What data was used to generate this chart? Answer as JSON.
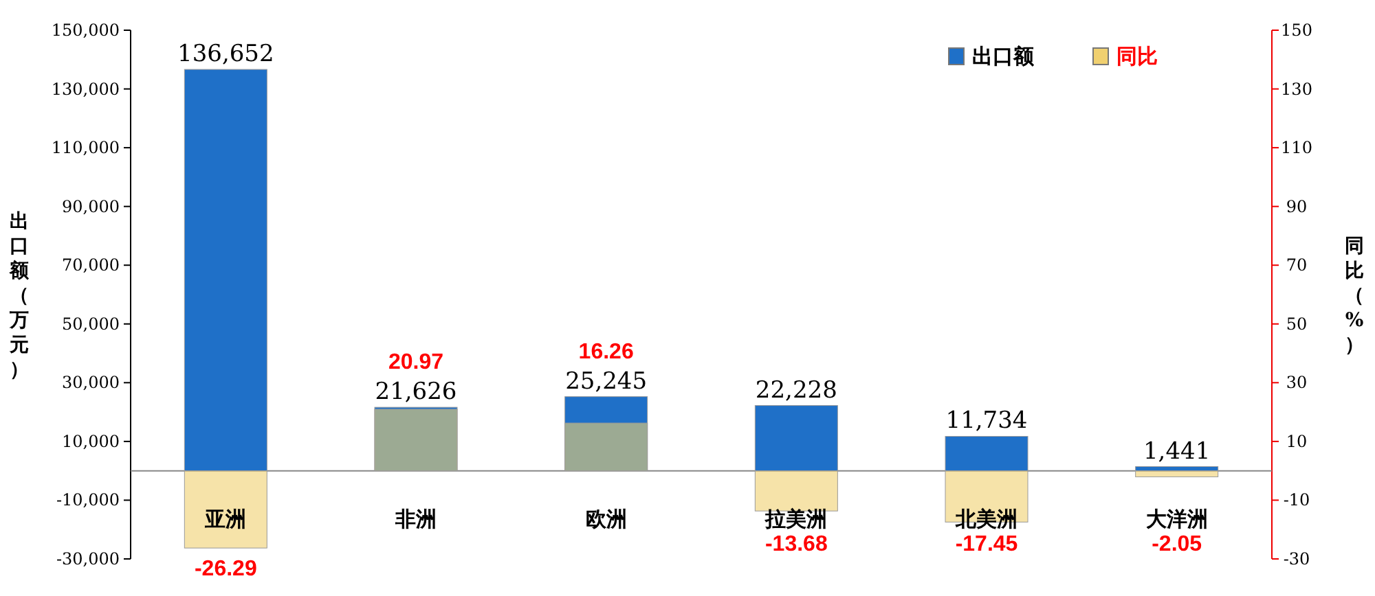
{
  "chart_data": {
    "type": "bar",
    "categories": [
      "亚洲",
      "非洲",
      "欧洲",
      "拉美洲",
      "北美洲",
      "大洋洲"
    ],
    "ylabel": "出口额（万元）",
    "y2label": "同比（%）",
    "series": [
      {
        "name": "出口额",
        "color": "#1f70c8",
        "values": [
          136652,
          21626,
          25245,
          22228,
          11734,
          1441
        ],
        "value_labels": [
          "136,652",
          "21,626",
          "25,245",
          "22,228",
          "11,734",
          "1,441"
        ]
      },
      {
        "name": "同比",
        "color": "#f0d070",
        "axis": "y2",
        "values": [
          -26.29,
          20.97,
          16.26,
          -13.68,
          -17.45,
          -2.05
        ],
        "value_labels": [
          "-26.29",
          "20.97",
          "16.26",
          "-13.68",
          "-17.45",
          "-2.05"
        ]
      }
    ],
    "ylim": [
      -30000,
      150000
    ],
    "yticks": [
      {
        "value": -30000,
        "label": "-30,000"
      },
      {
        "value": -10000,
        "label": "-10,000"
      },
      {
        "value": 10000,
        "label": "10,000"
      },
      {
        "value": 30000,
        "label": "30,000"
      },
      {
        "value": 50000,
        "label": "50,000"
      },
      {
        "value": 70000,
        "label": "70,000"
      },
      {
        "value": 90000,
        "label": "90,000"
      },
      {
        "value": 110000,
        "label": "110,000"
      },
      {
        "value": 130000,
        "label": "130,000"
      },
      {
        "value": 150000,
        "label": "150,000"
      }
    ],
    "y2lim": [
      -30,
      150
    ],
    "y2ticks": [
      -30,
      -10,
      10,
      30,
      50,
      70,
      90,
      110,
      130,
      150
    ],
    "legend": "top right"
  }
}
